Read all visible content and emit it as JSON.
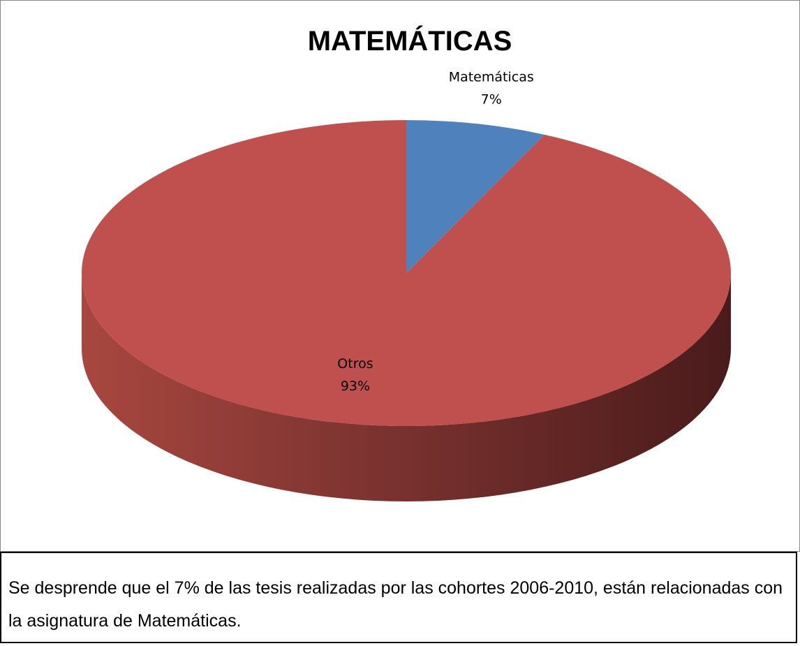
{
  "chart_data": {
    "type": "pie",
    "title": "MATEMÁTICAS",
    "categories": [
      "Matemáticas",
      "Otros"
    ],
    "values": [
      7,
      93
    ],
    "value_labels": [
      "7%",
      "93%"
    ],
    "colors": [
      "#4f81bd",
      "#c0504d"
    ]
  },
  "caption": "Se desprende que el 7% de las tesis realizadas por las cohortes 2006-2010, están relacionadas con la asignatura de Matemáticas."
}
